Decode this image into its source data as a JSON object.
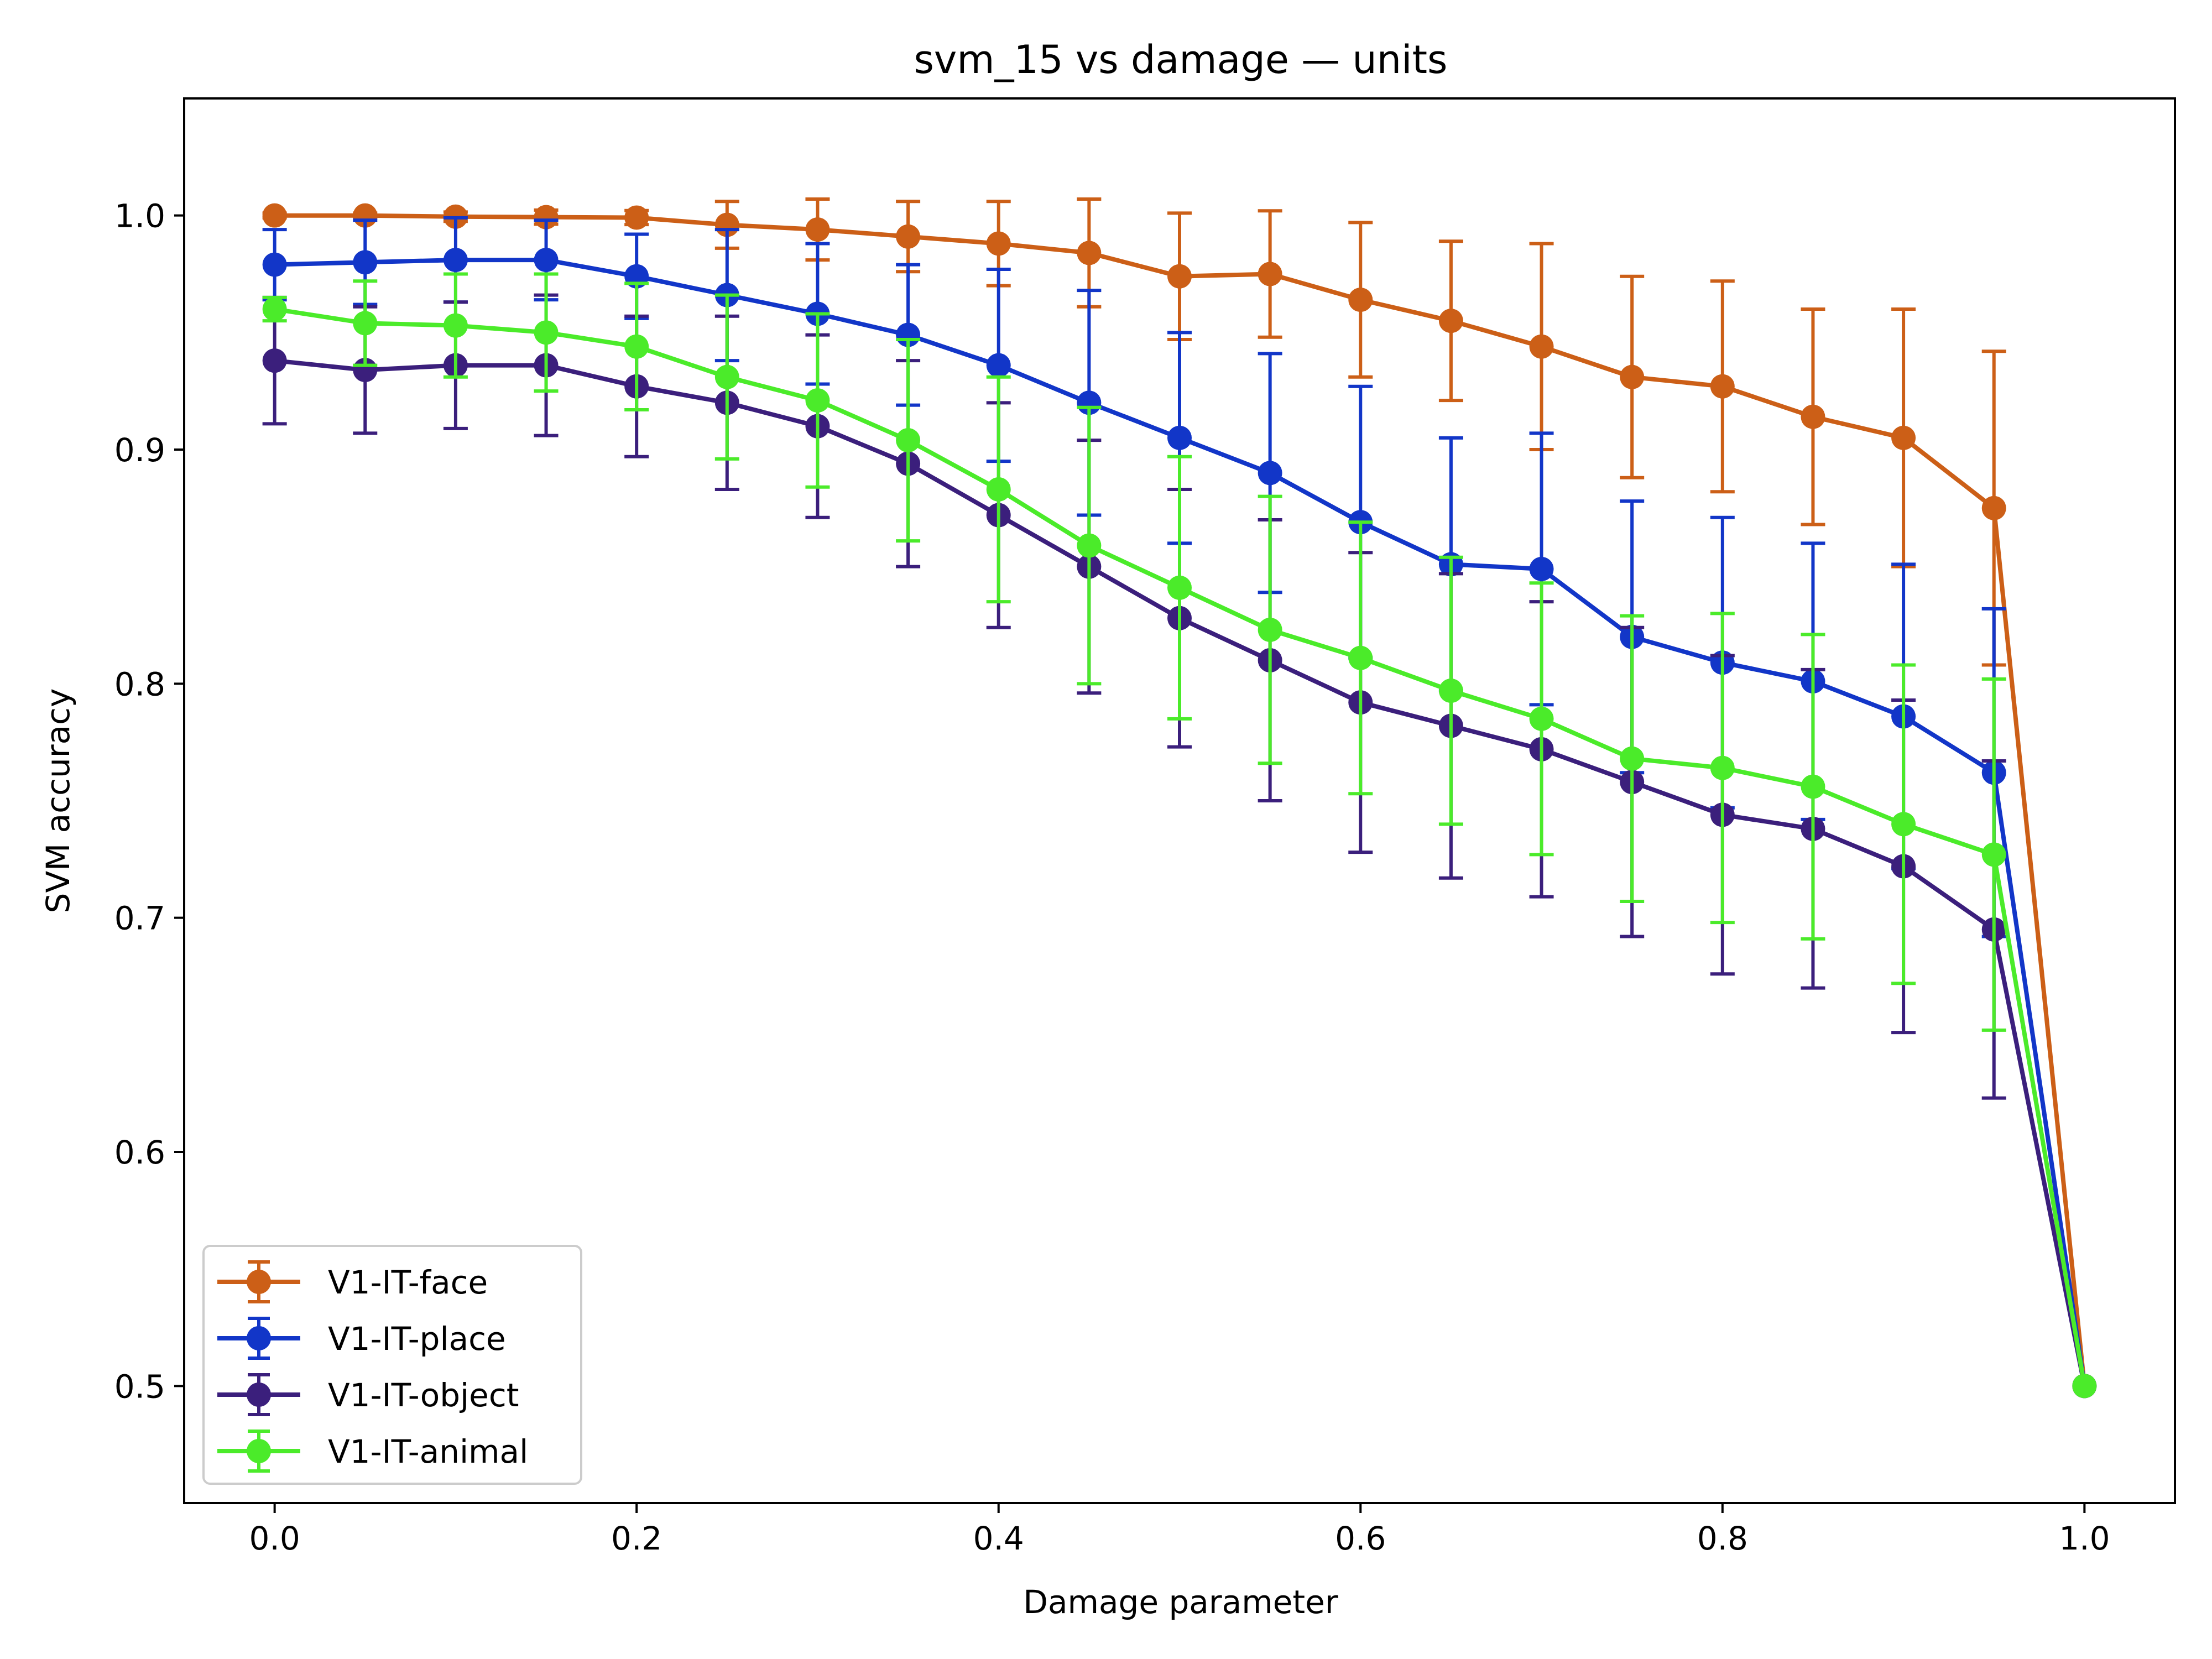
{
  "chart_data": {
    "type": "line",
    "title": "svm_15 vs damage — units",
    "xlabel": "Damage parameter",
    "ylabel": "SVM accuracy",
    "xlim": [
      -0.05,
      1.05
    ],
    "ylim": [
      0.45,
      1.05
    ],
    "xticks": [
      0.0,
      0.2,
      0.4,
      0.6,
      0.8,
      1.0
    ],
    "xtick_labels": [
      "0.0",
      "0.2",
      "0.4",
      "0.6",
      "0.8",
      "1.0"
    ],
    "yticks": [
      0.5,
      0.6,
      0.7,
      0.8,
      0.9,
      1.0
    ],
    "ytick_labels": [
      "0.5",
      "0.6",
      "0.7",
      "0.8",
      "0.9",
      "1.0"
    ],
    "grid": false,
    "legend_position": "lower-left",
    "x": [
      0.0,
      0.05,
      0.1,
      0.15,
      0.2,
      0.25,
      0.3,
      0.35,
      0.4,
      0.45,
      0.5,
      0.55,
      0.6,
      0.65,
      0.7,
      0.75,
      0.8,
      0.85,
      0.9,
      0.95,
      1.0
    ],
    "series": [
      {
        "name": "V1-IT-face",
        "color": "#cc5f17",
        "values": [
          1.0,
          1.0,
          0.9995,
          0.9993,
          0.9991,
          0.996,
          0.994,
          0.991,
          0.988,
          0.984,
          0.974,
          0.975,
          0.964,
          0.955,
          0.944,
          0.931,
          0.927,
          0.914,
          0.905,
          0.875,
          0.5
        ],
        "errors": [
          0.001,
          0.001,
          0.002,
          0.003,
          0.003,
          0.01,
          0.013,
          0.015,
          0.018,
          0.023,
          0.027,
          0.027,
          0.033,
          0.034,
          0.044,
          0.043,
          0.045,
          0.046,
          0.055,
          0.067,
          0.0
        ]
      },
      {
        "name": "V1-IT-place",
        "color": "#1236c8",
        "values": [
          0.979,
          0.98,
          0.981,
          0.981,
          0.974,
          0.966,
          0.958,
          0.949,
          0.936,
          0.92,
          0.905,
          0.89,
          0.869,
          0.851,
          0.849,
          0.82,
          0.809,
          0.801,
          0.786,
          0.762,
          0.5
        ],
        "errors": [
          0.015,
          0.018,
          0.018,
          0.017,
          0.018,
          0.028,
          0.03,
          0.03,
          0.041,
          0.048,
          0.045,
          0.051,
          0.058,
          0.054,
          0.058,
          0.058,
          0.062,
          0.059,
          0.065,
          0.07,
          0.0
        ]
      },
      {
        "name": "V1-IT-object",
        "color": "#3b1f7c",
        "values": [
          0.938,
          0.934,
          0.936,
          0.936,
          0.927,
          0.92,
          0.91,
          0.894,
          0.872,
          0.85,
          0.828,
          0.81,
          0.792,
          0.782,
          0.772,
          0.758,
          0.744,
          0.738,
          0.722,
          0.695,
          0.5
        ],
        "errors": [
          0.027,
          0.027,
          0.027,
          0.03,
          0.03,
          0.037,
          0.039,
          0.044,
          0.048,
          0.054,
          0.055,
          0.06,
          0.064,
          0.065,
          0.063,
          0.066,
          0.068,
          0.068,
          0.071,
          0.072,
          0.0
        ]
      },
      {
        "name": "V1-IT-animal",
        "color": "#4beb2a",
        "values": [
          0.96,
          0.954,
          0.953,
          0.95,
          0.944,
          0.931,
          0.921,
          0.904,
          0.883,
          0.859,
          0.841,
          0.823,
          0.811,
          0.797,
          0.785,
          0.768,
          0.764,
          0.756,
          0.74,
          0.727,
          0.5
        ],
        "errors": [
          0.005,
          0.018,
          0.022,
          0.025,
          0.027,
          0.035,
          0.037,
          0.043,
          0.048,
          0.059,
          0.056,
          0.057,
          0.058,
          0.057,
          0.058,
          0.061,
          0.066,
          0.065,
          0.068,
          0.075,
          0.0
        ]
      }
    ]
  }
}
